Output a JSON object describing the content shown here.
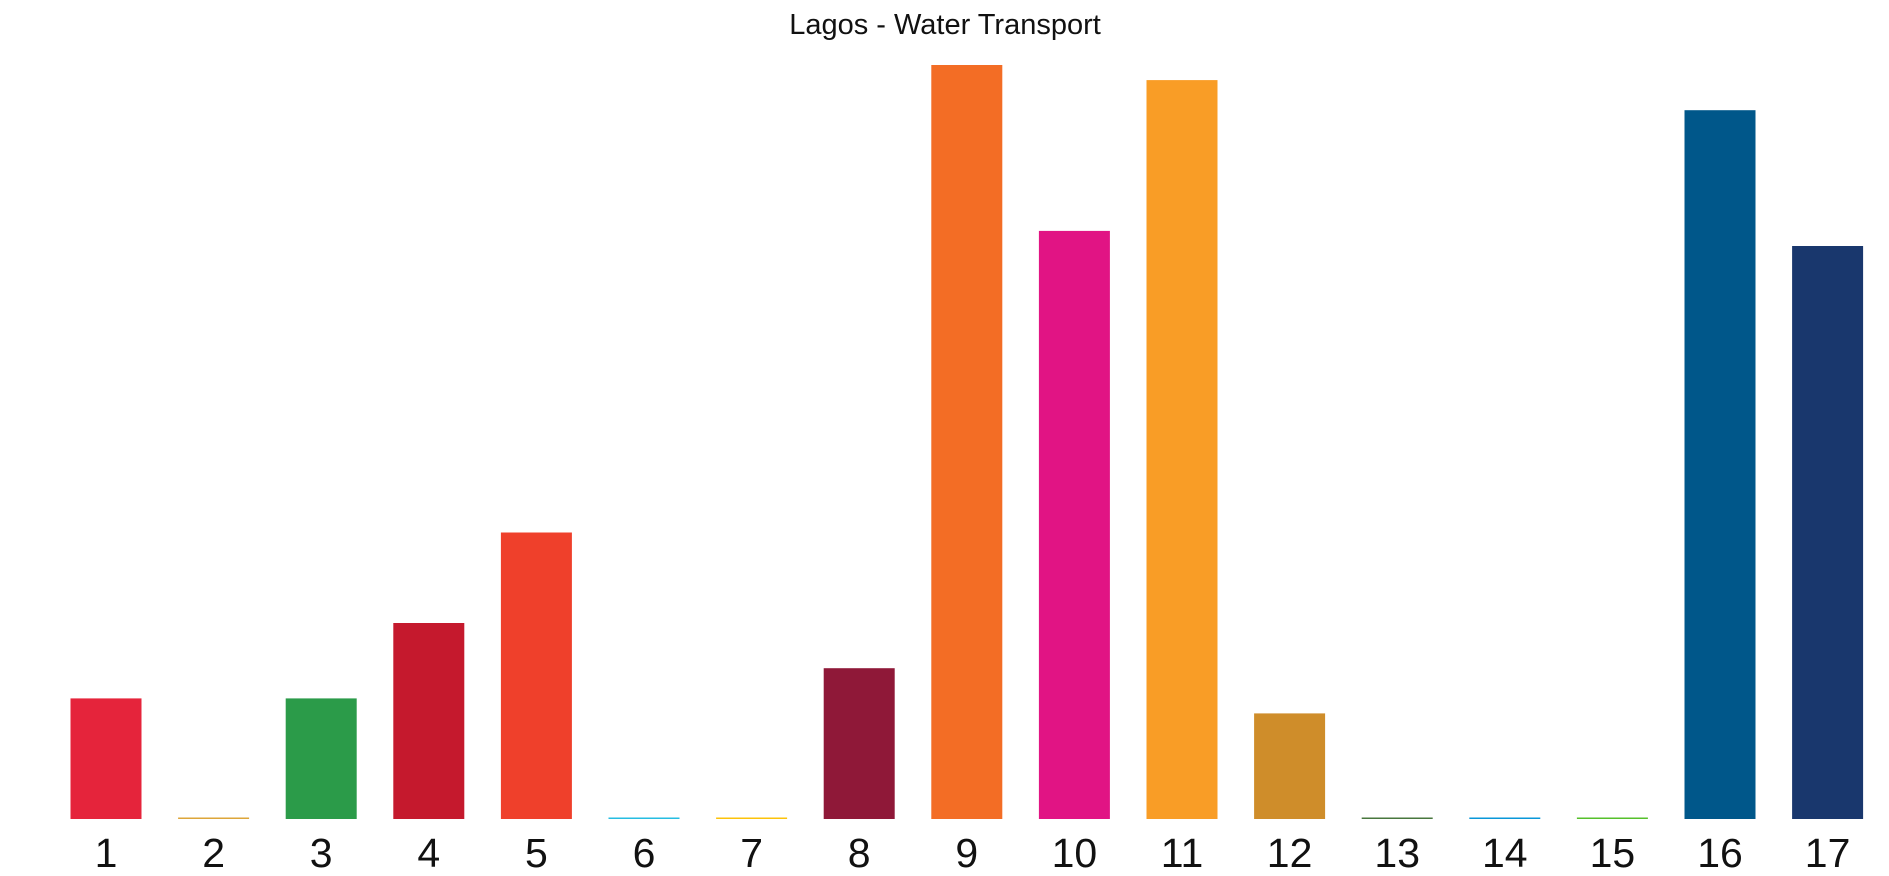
{
  "chart_data": {
    "type": "bar",
    "title": "Lagos - Water Transport",
    "xlabel": "",
    "ylabel": "",
    "categories": [
      "1",
      "2",
      "3",
      "4",
      "5",
      "6",
      "7",
      "8",
      "9",
      "10",
      "11",
      "12",
      "13",
      "14",
      "15",
      "16",
      "17"
    ],
    "values": [
      16,
      0.2,
      16,
      26,
      38,
      0.2,
      0.2,
      20,
      100,
      78,
      98,
      14,
      0.2,
      0.2,
      0.2,
      94,
      76
    ],
    "colors": [
      "#e5243b",
      "#dda63a",
      "#2b9b49",
      "#c5192d",
      "#ef402b",
      "#26bde2",
      "#fcc30b",
      "#8f1838",
      "#f36d25",
      "#e11484",
      "#f99d26",
      "#cf8d2a",
      "#48773e",
      "#0a97d9",
      "#56c02b",
      "#00578a",
      "#19376d"
    ],
    "ylim": [
      0,
      100
    ],
    "grid": false,
    "legend": "none"
  }
}
